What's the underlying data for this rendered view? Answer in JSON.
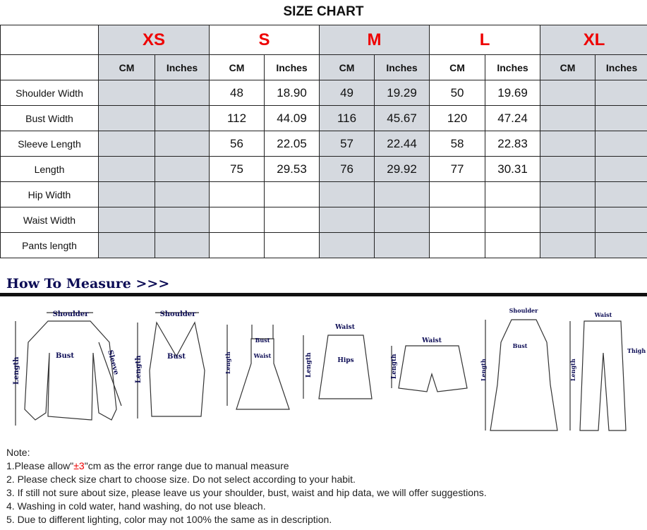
{
  "title": "SIZE CHART",
  "sizes": [
    "XS",
    "S",
    "M",
    "L",
    "XL"
  ],
  "units": [
    "CM",
    "Inches"
  ],
  "rows": [
    {
      "label": "Shoulder Width",
      "values": [
        "",
        "",
        "48",
        "18.90",
        "49",
        "19.29",
        "50",
        "19.69",
        "",
        ""
      ]
    },
    {
      "label": "Bust Width",
      "values": [
        "",
        "",
        "112",
        "44.09",
        "116",
        "45.67",
        "120",
        "47.24",
        "",
        ""
      ]
    },
    {
      "label": "Sleeve Length",
      "values": [
        "",
        "",
        "56",
        "22.05",
        "57",
        "22.44",
        "58",
        "22.83",
        "",
        ""
      ]
    },
    {
      "label": "Length",
      "values": [
        "",
        "",
        "75",
        "29.53",
        "76",
        "29.92",
        "77",
        "30.31",
        "",
        ""
      ]
    },
    {
      "label": "Hip Width",
      "values": [
        "",
        "",
        "",
        "",
        "",
        "",
        "",
        "",
        "",
        ""
      ]
    },
    {
      "label": "Waist Width",
      "values": [
        "",
        "",
        "",
        "",
        "",
        "",
        "",
        "",
        "",
        ""
      ]
    },
    {
      "label": "Pants length",
      "values": [
        "",
        "",
        "",
        "",
        "",
        "",
        "",
        "",
        "",
        ""
      ]
    }
  ],
  "how_to_measure": "How To Measure >>>",
  "diagram_labels": {
    "shoulder": "Shoulder",
    "bust": "Bust",
    "sleeve": "Sleeve",
    "length": "Length",
    "waist": "Waist",
    "hips": "Hips",
    "thigh": "Thigh"
  },
  "notes": {
    "heading": "Note:",
    "n1_pre": "1.Please allow\"",
    "n1_red": "±3",
    "n1_post": "\"cm as the error range due to manual measure",
    "n2": "2. Please check size chart to choose size. Do not select according to your habit.",
    "n3": "3. If still not sure about size, please leave us your shoulder, bust, waist and hip data, we will offer suggestions.",
    "n4": "4. Washing in cold water, hand washing, do not use bleach.",
    "n5": "5. Due to different lighting, color may not 100% the same as in description."
  },
  "colors": {
    "size_red": "#e00000",
    "shade": "#d5d9df",
    "heading_navy": "#0c0c55"
  }
}
